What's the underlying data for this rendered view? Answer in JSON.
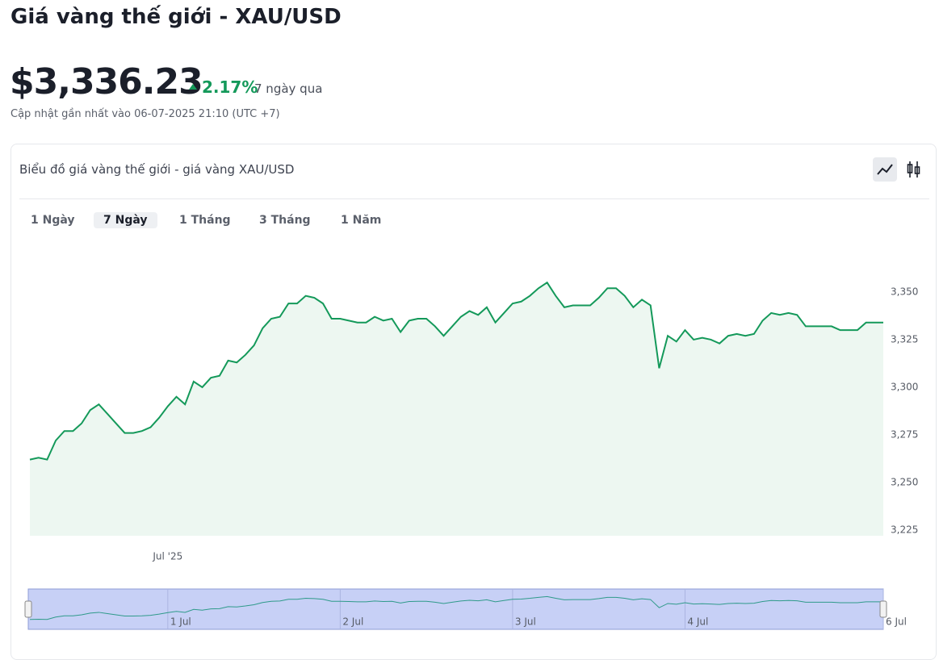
{
  "header": {
    "title": "Giá vàng thế giới - XAU/USD",
    "price": "$3,336.23",
    "change": "2.17%",
    "period": "7 ngày qua",
    "updated": "Cập nhật gần nhất vào 06-07-2025 21:10 (UTC +7)"
  },
  "card": {
    "title": "Biểu đồ giá vàng thế giới - giá vàng XAU/USD",
    "tabs": [
      "1 Ngày",
      "7 Ngày",
      "1 Tháng",
      "3 Tháng",
      "1 Năm"
    ]
  },
  "chart_data": {
    "type": "area",
    "color": "#14995a",
    "categories": [
      null,
      null,
      null,
      null,
      null,
      null,
      null,
      null,
      null,
      null,
      null,
      null,
      null,
      null,
      null,
      null,
      "Jul '25",
      null,
      null,
      null,
      null,
      null,
      null,
      null,
      null,
      null,
      null,
      null,
      null,
      null,
      null,
      null,
      null,
      null,
      null,
      null,
      null,
      null,
      null,
      null,
      null,
      null,
      null,
      null,
      null,
      null,
      null,
      null,
      null,
      null,
      null,
      null,
      null,
      null,
      null,
      null,
      null,
      null,
      null,
      null,
      null,
      null,
      null,
      null,
      null,
      null,
      null,
      null,
      null,
      null,
      null,
      null,
      null,
      null,
      null,
      null,
      null,
      null,
      null,
      null,
      null,
      null,
      null,
      null,
      null,
      null,
      null,
      null,
      null,
      null,
      null,
      null,
      null,
      null,
      null,
      null,
      null,
      null,
      null,
      null
    ],
    "values": [
      3262,
      3263,
      3262,
      3272,
      3277,
      3277,
      3281,
      3288,
      3291,
      3286,
      3281,
      3276,
      3276,
      3277,
      3279,
      3284,
      3290,
      3295,
      3291,
      3303,
      3300,
      3305,
      3306,
      3314,
      3313,
      3317,
      3322,
      3331,
      3336,
      3337,
      3344,
      3344,
      3348,
      3347,
      3344,
      3336,
      3336,
      3335,
      3334,
      3334,
      3337,
      3335,
      3336,
      3329,
      3335,
      3336,
      3336,
      3332,
      3327,
      3332,
      3337,
      3340,
      3338,
      3342,
      3334,
      3339,
      3344,
      3345,
      3348,
      3352,
      3355,
      3348,
      3342,
      3343,
      3343,
      3343,
      3347,
      3352,
      3352,
      3348,
      3342,
      3346,
      3343,
      3310,
      3327,
      3324,
      3330,
      3325,
      3326,
      3325,
      3323,
      3327,
      3328,
      3327,
      3328,
      3335,
      3339,
      3338,
      3339,
      3338,
      3332,
      3332,
      3332,
      3332,
      3330,
      3330,
      3330,
      3334,
      3334,
      3334
    ],
    "ylim": [
      3222,
      3376
    ],
    "yticks": [
      {
        "value": 3225,
        "label": "3,225"
      },
      {
        "value": 3250,
        "label": "3,250"
      },
      {
        "value": 3275,
        "label": "3,275"
      },
      {
        "value": 3300,
        "label": "3,300"
      },
      {
        "value": 3325,
        "label": "3,325"
      },
      {
        "value": 3350,
        "label": "3,350"
      }
    ],
    "grid": false,
    "navigator": {
      "categories": [
        null,
        null,
        null,
        null,
        null,
        null,
        null,
        null,
        null,
        null,
        null,
        null,
        null,
        null,
        null,
        null,
        "1 Jul",
        null,
        null,
        null,
        null,
        null,
        null,
        null,
        null,
        null,
        null,
        null,
        null,
        null,
        null,
        null,
        null,
        null,
        null,
        null,
        "2 Jul",
        null,
        null,
        null,
        null,
        null,
        null,
        null,
        null,
        null,
        null,
        null,
        null,
        null,
        null,
        null,
        null,
        null,
        null,
        null,
        "3 Jul",
        null,
        null,
        null,
        null,
        null,
        null,
        null,
        null,
        null,
        null,
        null,
        null,
        null,
        null,
        null,
        null,
        null,
        null,
        null,
        "4 Jul",
        null,
        null,
        null,
        null,
        null,
        null,
        null,
        null,
        null,
        null,
        null,
        null,
        null,
        null,
        null,
        null,
        null,
        null,
        null,
        null,
        null,
        null,
        "6 Jul"
      ]
    }
  }
}
